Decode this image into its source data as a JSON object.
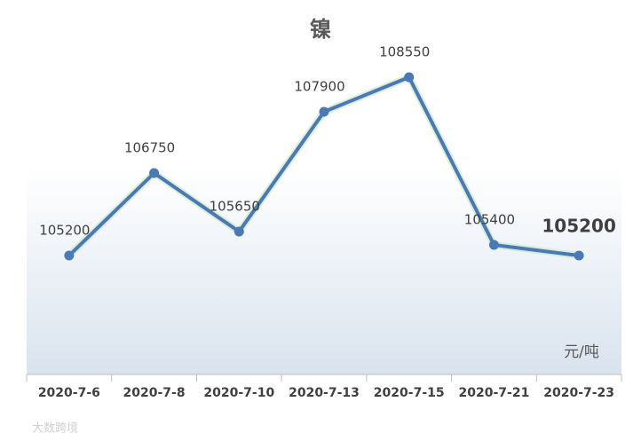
{
  "chart_data": {
    "type": "line",
    "title": "镍",
    "categories": [
      "2020-7-6",
      "2020-7-8",
      "2020-7-10",
      "2020-7-13",
      "2020-7-15",
      "2020-7-21",
      "2020-7-23"
    ],
    "series": [
      {
        "name": "镍",
        "color": "#4a7ab5",
        "values": [
          105200,
          106750,
          105650,
          107900,
          108550,
          105400,
          105200
        ]
      }
    ],
    "unit_label": "元/吨",
    "watermark": "大数跨境"
  }
}
